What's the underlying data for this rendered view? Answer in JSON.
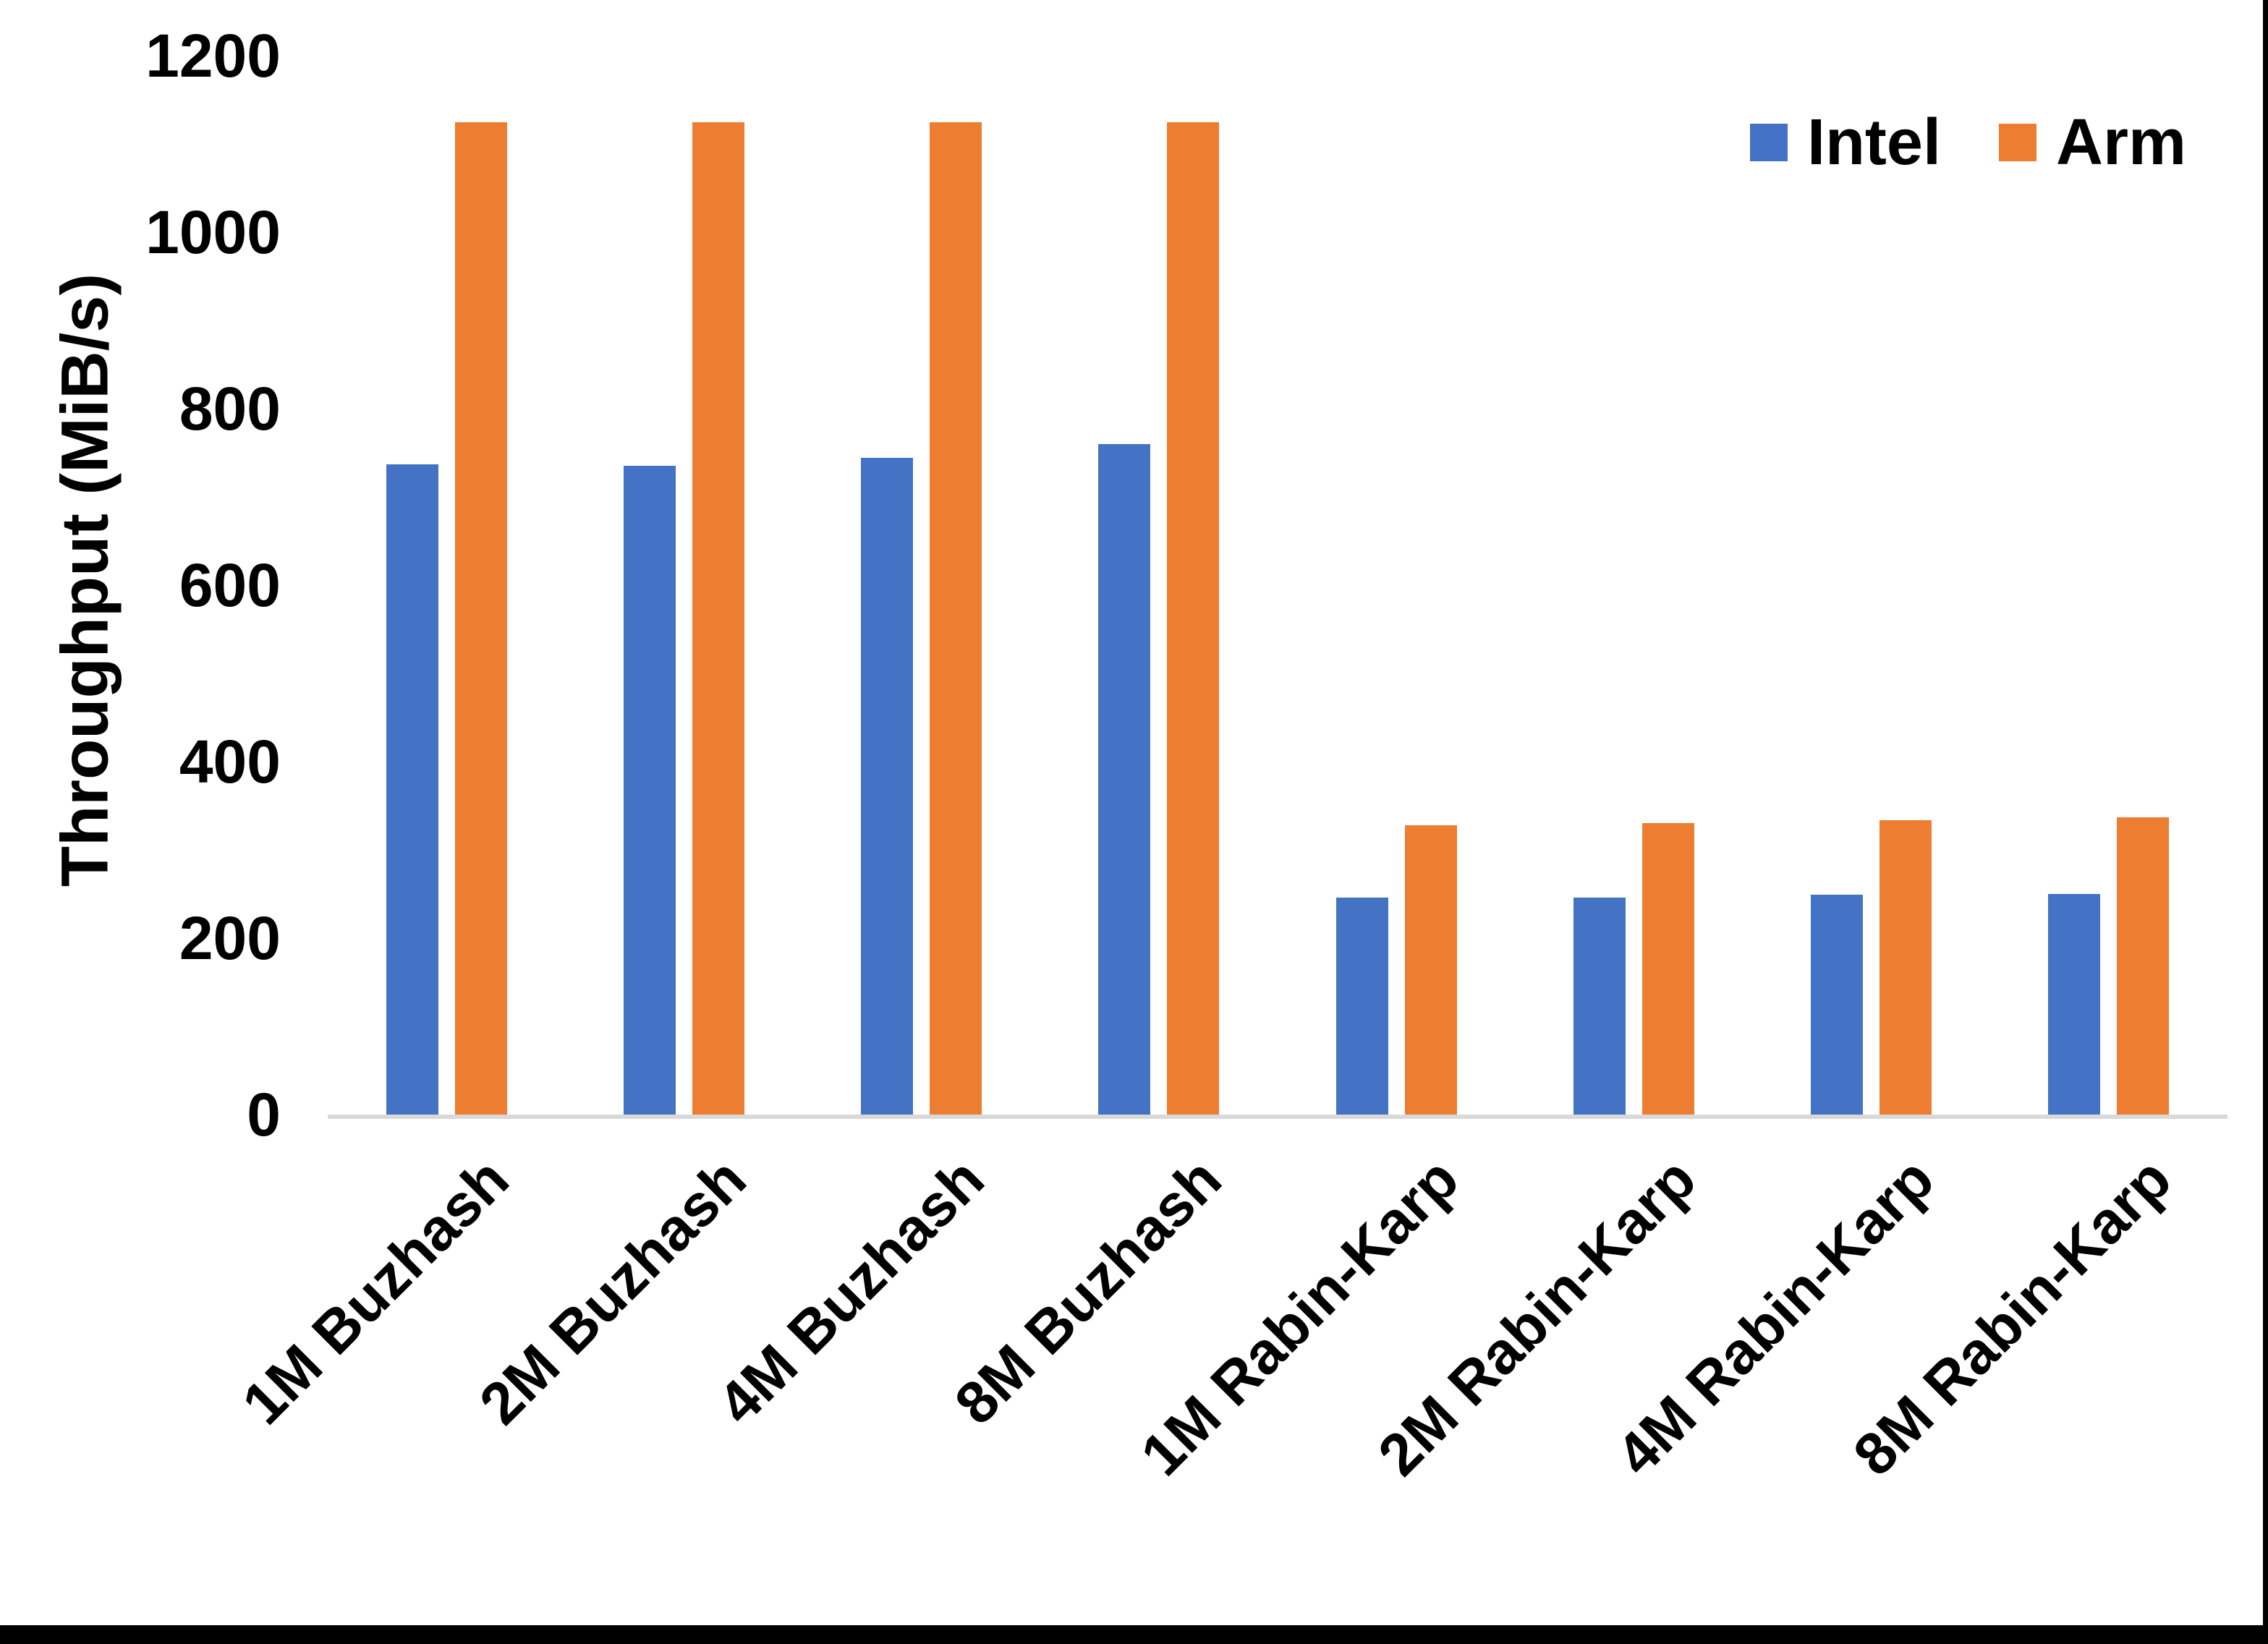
{
  "chart_data": {
    "type": "bar",
    "title": "",
    "ylabel": "Throughput (MiB/s)",
    "xlabel": "",
    "ylim": [
      0,
      1200
    ],
    "yticks": [
      0,
      200,
      400,
      600,
      800,
      1000,
      1200
    ],
    "grid": false,
    "legend_position": "top-right",
    "categories": [
      "1M Buzhash",
      "2M Buzhash",
      "4M Buzhash",
      "8M Buzhash",
      "1M Rabin-Karp",
      "2M Rabin-Karp",
      "4M Rabin-Karp",
      "8M Rabin-Karp"
    ],
    "series": [
      {
        "name": "Intel",
        "color": "#4472C4",
        "values": [
          737,
          735,
          744,
          760,
          246,
          246,
          249,
          250
        ]
      },
      {
        "name": "Arm",
        "color": "#ED7D31",
        "values": [
          1125,
          1125,
          1125,
          1125,
          328,
          330,
          334,
          337
        ]
      }
    ]
  },
  "colors": {
    "background": "#FFFFFF",
    "axis_line": "#D9D9D9",
    "text": "#000000",
    "page_border": "#000000"
  }
}
